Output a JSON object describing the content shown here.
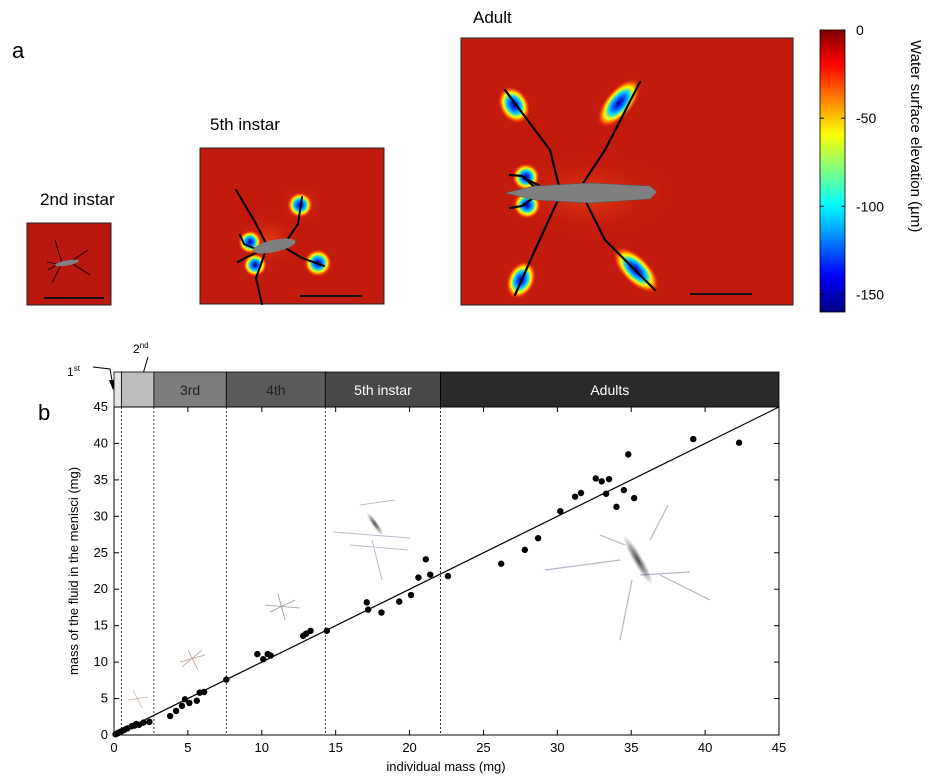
{
  "panel_labels": {
    "a": "a",
    "b": "b"
  },
  "colors": {
    "field": "#c21a0d",
    "insect": "#808080",
    "leg": "#000000",
    "stage_bars": [
      "#e4e4e4",
      "#bdbdbd",
      "#7d7d7d",
      "#5a5a5a",
      "#484848",
      "#2a2a2a"
    ]
  },
  "heatmap_panels": [
    {
      "title": "2nd instar"
    },
    {
      "title": "5th instar"
    },
    {
      "title": "Adult"
    }
  ],
  "colorbar": {
    "label": "Water surface elevation  (µm)",
    "ticks": [
      "0",
      "-50",
      "-100",
      "-150"
    ],
    "range": [
      -160,
      0
    ]
  },
  "stages": {
    "callout_1st": "1st",
    "callout_2nd": "2nd",
    "bars": [
      {
        "label": "",
        "range": [
          0,
          0.5
        ]
      },
      {
        "label": "",
        "range": [
          0.5,
          2.7
        ]
      },
      {
        "label": "3rd",
        "range": [
          2.7,
          7.6
        ]
      },
      {
        "label": "4th",
        "range": [
          7.6,
          14.3
        ]
      },
      {
        "label": "5th instar",
        "range": [
          14.3,
          22.1
        ]
      },
      {
        "label": "Adults",
        "range": [
          22.1,
          45
        ]
      }
    ]
  },
  "chart_data": {
    "type": "scatter",
    "xlabel": "individual mass (mg)",
    "ylabel": "mass of the fluid in the menisci (mg)",
    "xlim": [
      0,
      45
    ],
    "ylim": [
      0,
      45
    ],
    "xticks": [
      "0",
      "5",
      "10",
      "15",
      "20",
      "25",
      "30",
      "35",
      "40",
      "45"
    ],
    "yticks": [
      "0",
      "5",
      "10",
      "15",
      "20",
      "25",
      "30",
      "35",
      "40",
      "45"
    ],
    "grid": false,
    "fit_line": {
      "x": [
        0,
        45
      ],
      "y": [
        0,
        45
      ]
    },
    "stage_boundaries": [
      0.5,
      2.7,
      7.6,
      14.3,
      22.1
    ],
    "points": [
      [
        0.1,
        0.1
      ],
      [
        0.2,
        0.2
      ],
      [
        0.3,
        0.3
      ],
      [
        0.4,
        0.4
      ],
      [
        0.5,
        0.5
      ],
      [
        0.7,
        0.7
      ],
      [
        0.9,
        0.9
      ],
      [
        1.2,
        1.2
      ],
      [
        1.4,
        1.3
      ],
      [
        1.5,
        1.5
      ],
      [
        1.7,
        1.4
      ],
      [
        2.0,
        1.7
      ],
      [
        2.4,
        1.8
      ],
      [
        3.8,
        2.6
      ],
      [
        4.2,
        3.3
      ],
      [
        4.6,
        4.0
      ],
      [
        4.8,
        4.9
      ],
      [
        5.1,
        4.4
      ],
      [
        5.6,
        4.7
      ],
      [
        5.8,
        5.8
      ],
      [
        6.1,
        5.9
      ],
      [
        7.6,
        7.6
      ],
      [
        9.7,
        11.1
      ],
      [
        10.1,
        10.4
      ],
      [
        10.4,
        11.1
      ],
      [
        10.6,
        10.9
      ],
      [
        12.8,
        13.6
      ],
      [
        13.0,
        13.9
      ],
      [
        13.3,
        14.3
      ],
      [
        14.4,
        14.3
      ],
      [
        17.1,
        18.2
      ],
      [
        17.2,
        17.2
      ],
      [
        18.1,
        16.8
      ],
      [
        19.3,
        18.3
      ],
      [
        20.1,
        19.2
      ],
      [
        20.6,
        21.6
      ],
      [
        21.1,
        24.1
      ],
      [
        21.4,
        22.0
      ],
      [
        22.6,
        21.8
      ],
      [
        26.2,
        23.5
      ],
      [
        27.8,
        25.4
      ],
      [
        28.7,
        27.0
      ],
      [
        30.2,
        30.7
      ],
      [
        31.2,
        32.7
      ],
      [
        31.6,
        33.2
      ],
      [
        32.6,
        35.2
      ],
      [
        33.0,
        34.8
      ],
      [
        33.3,
        33.1
      ],
      [
        33.5,
        35.1
      ],
      [
        34.0,
        31.3
      ],
      [
        34.5,
        33.6
      ],
      [
        34.8,
        38.5
      ],
      [
        35.2,
        32.5
      ],
      [
        39.2,
        40.6
      ],
      [
        42.3,
        40.1
      ]
    ]
  }
}
